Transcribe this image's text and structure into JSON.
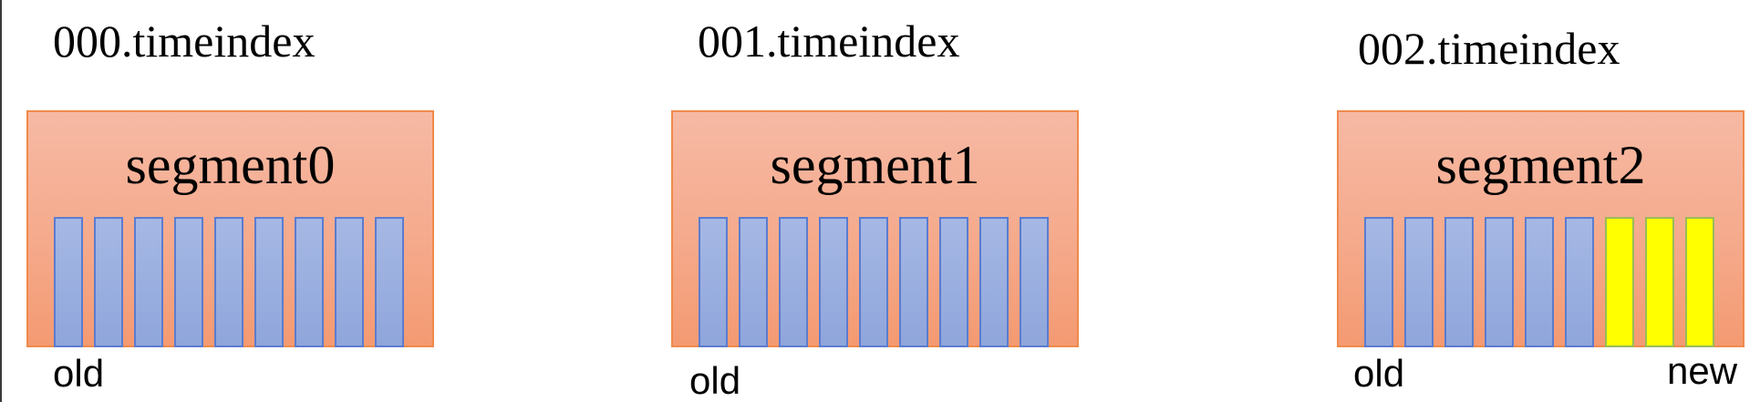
{
  "groups": [
    {
      "index_file": "000.timeindex",
      "segment": "segment0",
      "old_label": "old",
      "new_label": "",
      "cells": [
        "old",
        "old",
        "old",
        "old",
        "old",
        "old",
        "old",
        "old",
        "old"
      ]
    },
    {
      "index_file": "001.timeindex",
      "segment": "segment1",
      "old_label": "old",
      "new_label": "",
      "cells": [
        "old",
        "old",
        "old",
        "old",
        "old",
        "old",
        "old",
        "old",
        "old"
      ]
    },
    {
      "index_file": "002.timeindex",
      "segment": "segment2",
      "old_label": "old",
      "new_label": "new",
      "cells": [
        "old",
        "old",
        "old",
        "old",
        "old",
        "old",
        "new",
        "new",
        "new"
      ]
    }
  ],
  "colors": {
    "segment_fill": "#f5aa8c",
    "segment_border": "#f08a4b",
    "old_cell_fill": "#8fa6dc",
    "old_cell_border": "#5b7ccf",
    "new_cell_fill": "#ffff00",
    "new_cell_border": "#9bbb59"
  }
}
